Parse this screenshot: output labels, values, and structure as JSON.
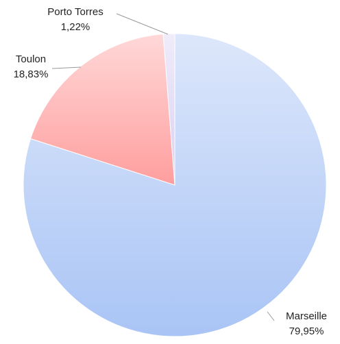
{
  "chart_data": {
    "type": "pie",
    "categories": [
      "Marseille",
      "Toulon",
      "Porto Torres"
    ],
    "values": [
      79.95,
      18.83,
      1.22
    ],
    "value_labels": [
      "79,95%",
      "18,83%",
      "1,22%"
    ],
    "colors": [
      "#a9c4f5",
      "#ff9e9e",
      "#d9d0f2"
    ]
  }
}
